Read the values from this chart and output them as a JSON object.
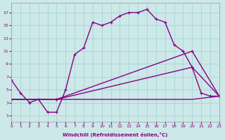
{
  "xlabel": "Windchill (Refroidissement éolien,°C)",
  "bg_color": "#cce8e8",
  "line_color": "#880088",
  "xlim": [
    0,
    23
  ],
  "ylim": [
    0,
    18.5
  ],
  "xticks": [
    0,
    1,
    2,
    3,
    4,
    5,
    6,
    7,
    8,
    9,
    10,
    11,
    12,
    13,
    14,
    15,
    16,
    17,
    18,
    19,
    20,
    21,
    22,
    23
  ],
  "yticks": [
    1,
    3,
    5,
    7,
    9,
    11,
    13,
    15,
    17
  ],
  "grid_color": "#a0d0d0",
  "series": [
    {
      "x": [
        0,
        1,
        2,
        3,
        4,
        5,
        6,
        7,
        8,
        9,
        10,
        11,
        12,
        13,
        14,
        15,
        16,
        17,
        18,
        19,
        20,
        21,
        22,
        23
      ],
      "y": [
        6.5,
        4.5,
        3.0,
        3.5,
        1.5,
        1.5,
        5.0,
        10.5,
        11.5,
        15.5,
        15.0,
        15.5,
        16.5,
        17.0,
        17.0,
        17.5,
        16.0,
        15.5,
        12.0,
        11.0,
        8.5,
        4.5,
        4.0,
        4.0
      ],
      "has_markers": true
    },
    {
      "x": [
        0,
        5,
        20,
        23
      ],
      "y": [
        3.5,
        3.5,
        11.0,
        4.0
      ],
      "has_markers": true
    },
    {
      "x": [
        0,
        5,
        20,
        23
      ],
      "y": [
        3.5,
        3.5,
        8.5,
        4.0
      ],
      "has_markers": true
    },
    {
      "x": [
        0,
        20,
        23
      ],
      "y": [
        3.5,
        3.5,
        4.0
      ],
      "has_markers": false
    }
  ]
}
